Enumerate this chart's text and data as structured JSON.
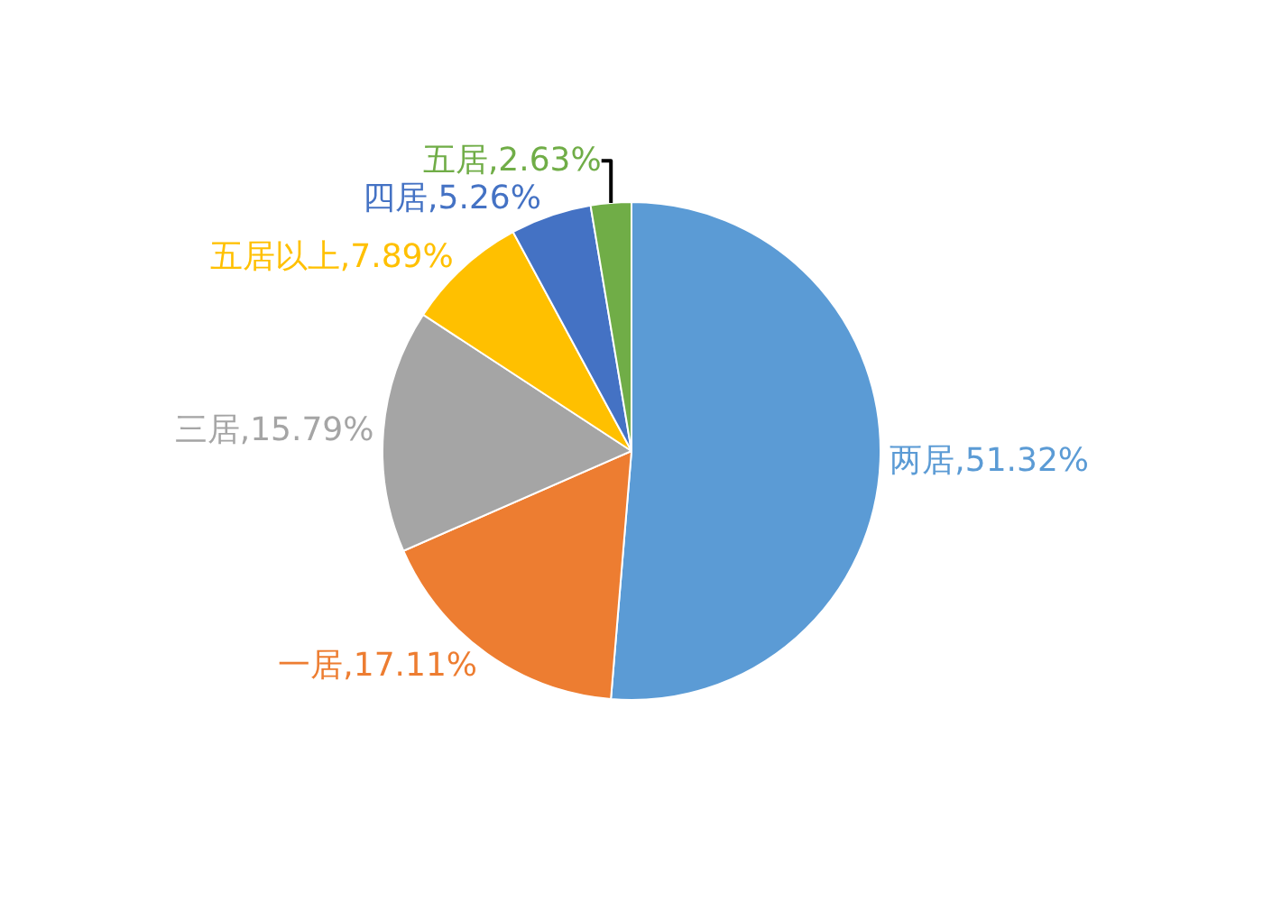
{
  "chart_data": {
    "type": "pie",
    "categories": [
      "两居",
      "一居",
      "三居",
      "五居以上",
      "四居",
      "五居"
    ],
    "values": [
      51.32,
      17.11,
      15.79,
      7.89,
      5.26,
      2.63
    ],
    "colors": [
      "#5b9bd5",
      "#ed7d31",
      "#a5a5a5",
      "#ffc000",
      "#4472c4",
      "#70ad47"
    ],
    "value_labels": [
      "51.32%",
      "17.11%",
      "15.79%",
      "7.89%",
      "5.26%",
      "2.63%"
    ],
    "legend": false
  }
}
